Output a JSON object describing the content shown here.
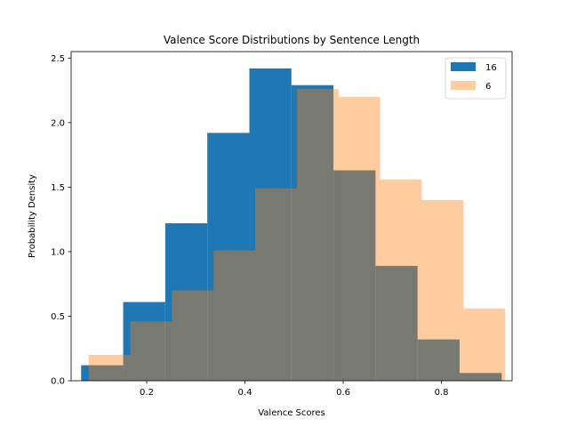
{
  "chart_data": {
    "type": "bar",
    "subtype": "histogram",
    "title": "Valence Score Distributions by Sentence Length",
    "xlabel": "Valence Scores",
    "ylabel": "Probability Density",
    "xlim": [
      0.0462,
      0.9438
    ],
    "ylim": [
      0,
      2.55
    ],
    "xticks": [
      0.2,
      0.4,
      0.6,
      0.8
    ],
    "xtick_labels": [
      "0.2",
      "0.4",
      "0.6",
      "0.8"
    ],
    "yticks": [
      0,
      0.5,
      1.0,
      1.5,
      2.0,
      2.5
    ],
    "ytick_labels": [
      "0.0",
      "0.5",
      "1.0",
      "1.5",
      "2.0",
      "2.5"
    ],
    "grid": false,
    "legend_position": "top-right",
    "series": [
      {
        "name": "16",
        "color": "#1f77b4",
        "opacity": 1.0,
        "bin_edges": [
          0.0666,
          0.1522,
          0.2378,
          0.3234,
          0.409,
          0.4946,
          0.5802,
          0.6658,
          0.7514,
          0.837,
          0.9226
        ],
        "values": [
          0.12,
          0.61,
          1.22,
          1.92,
          2.42,
          2.29,
          1.63,
          0.89,
          0.32,
          0.06
        ]
      },
      {
        "name": "6",
        "color": "#ff7f0e",
        "opacity": 0.4,
        "bin_edges": [
          0.0817,
          0.1665,
          0.2513,
          0.3361,
          0.4209,
          0.5057,
          0.5905,
          0.6753,
          0.7601,
          0.8449,
          0.9297
        ],
        "values": [
          0.2,
          0.46,
          0.7,
          1.01,
          1.49,
          2.26,
          2.2,
          1.56,
          1.4,
          0.56
        ]
      }
    ]
  }
}
